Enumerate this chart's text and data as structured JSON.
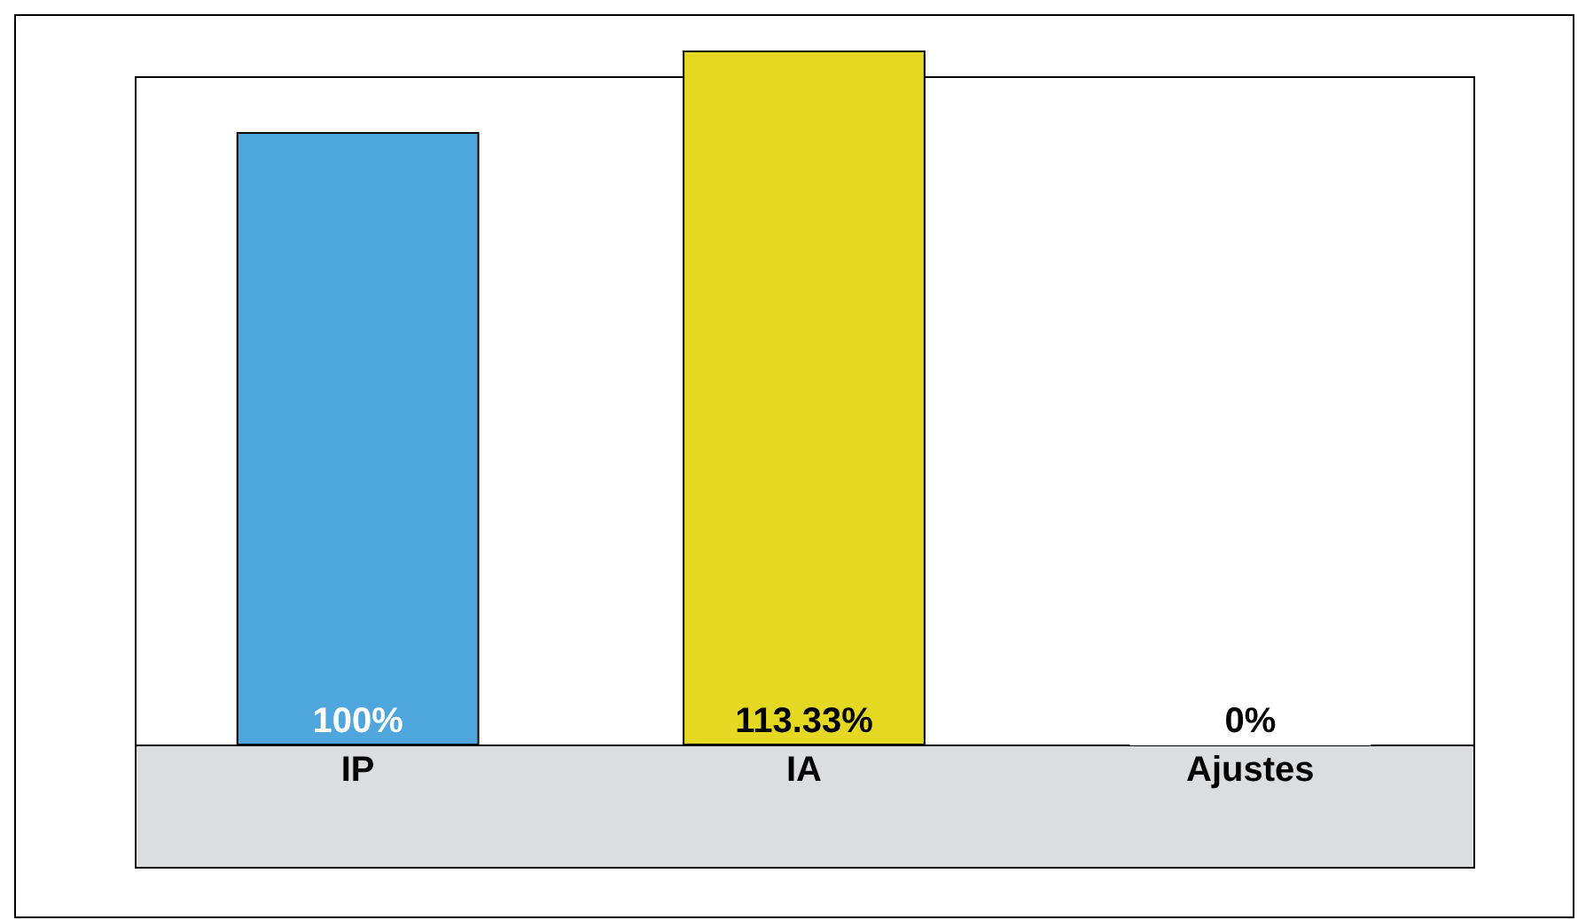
{
  "chart_data": {
    "type": "bar",
    "categories": [
      "IP",
      "IA",
      "Ajustes"
    ],
    "values": [
      100,
      113.33,
      0
    ],
    "colors": [
      "#4fa6dc",
      "#e5d823",
      "#ffffff"
    ],
    "value_labels": [
      "100%",
      "113.33%",
      "0%"
    ]
  }
}
